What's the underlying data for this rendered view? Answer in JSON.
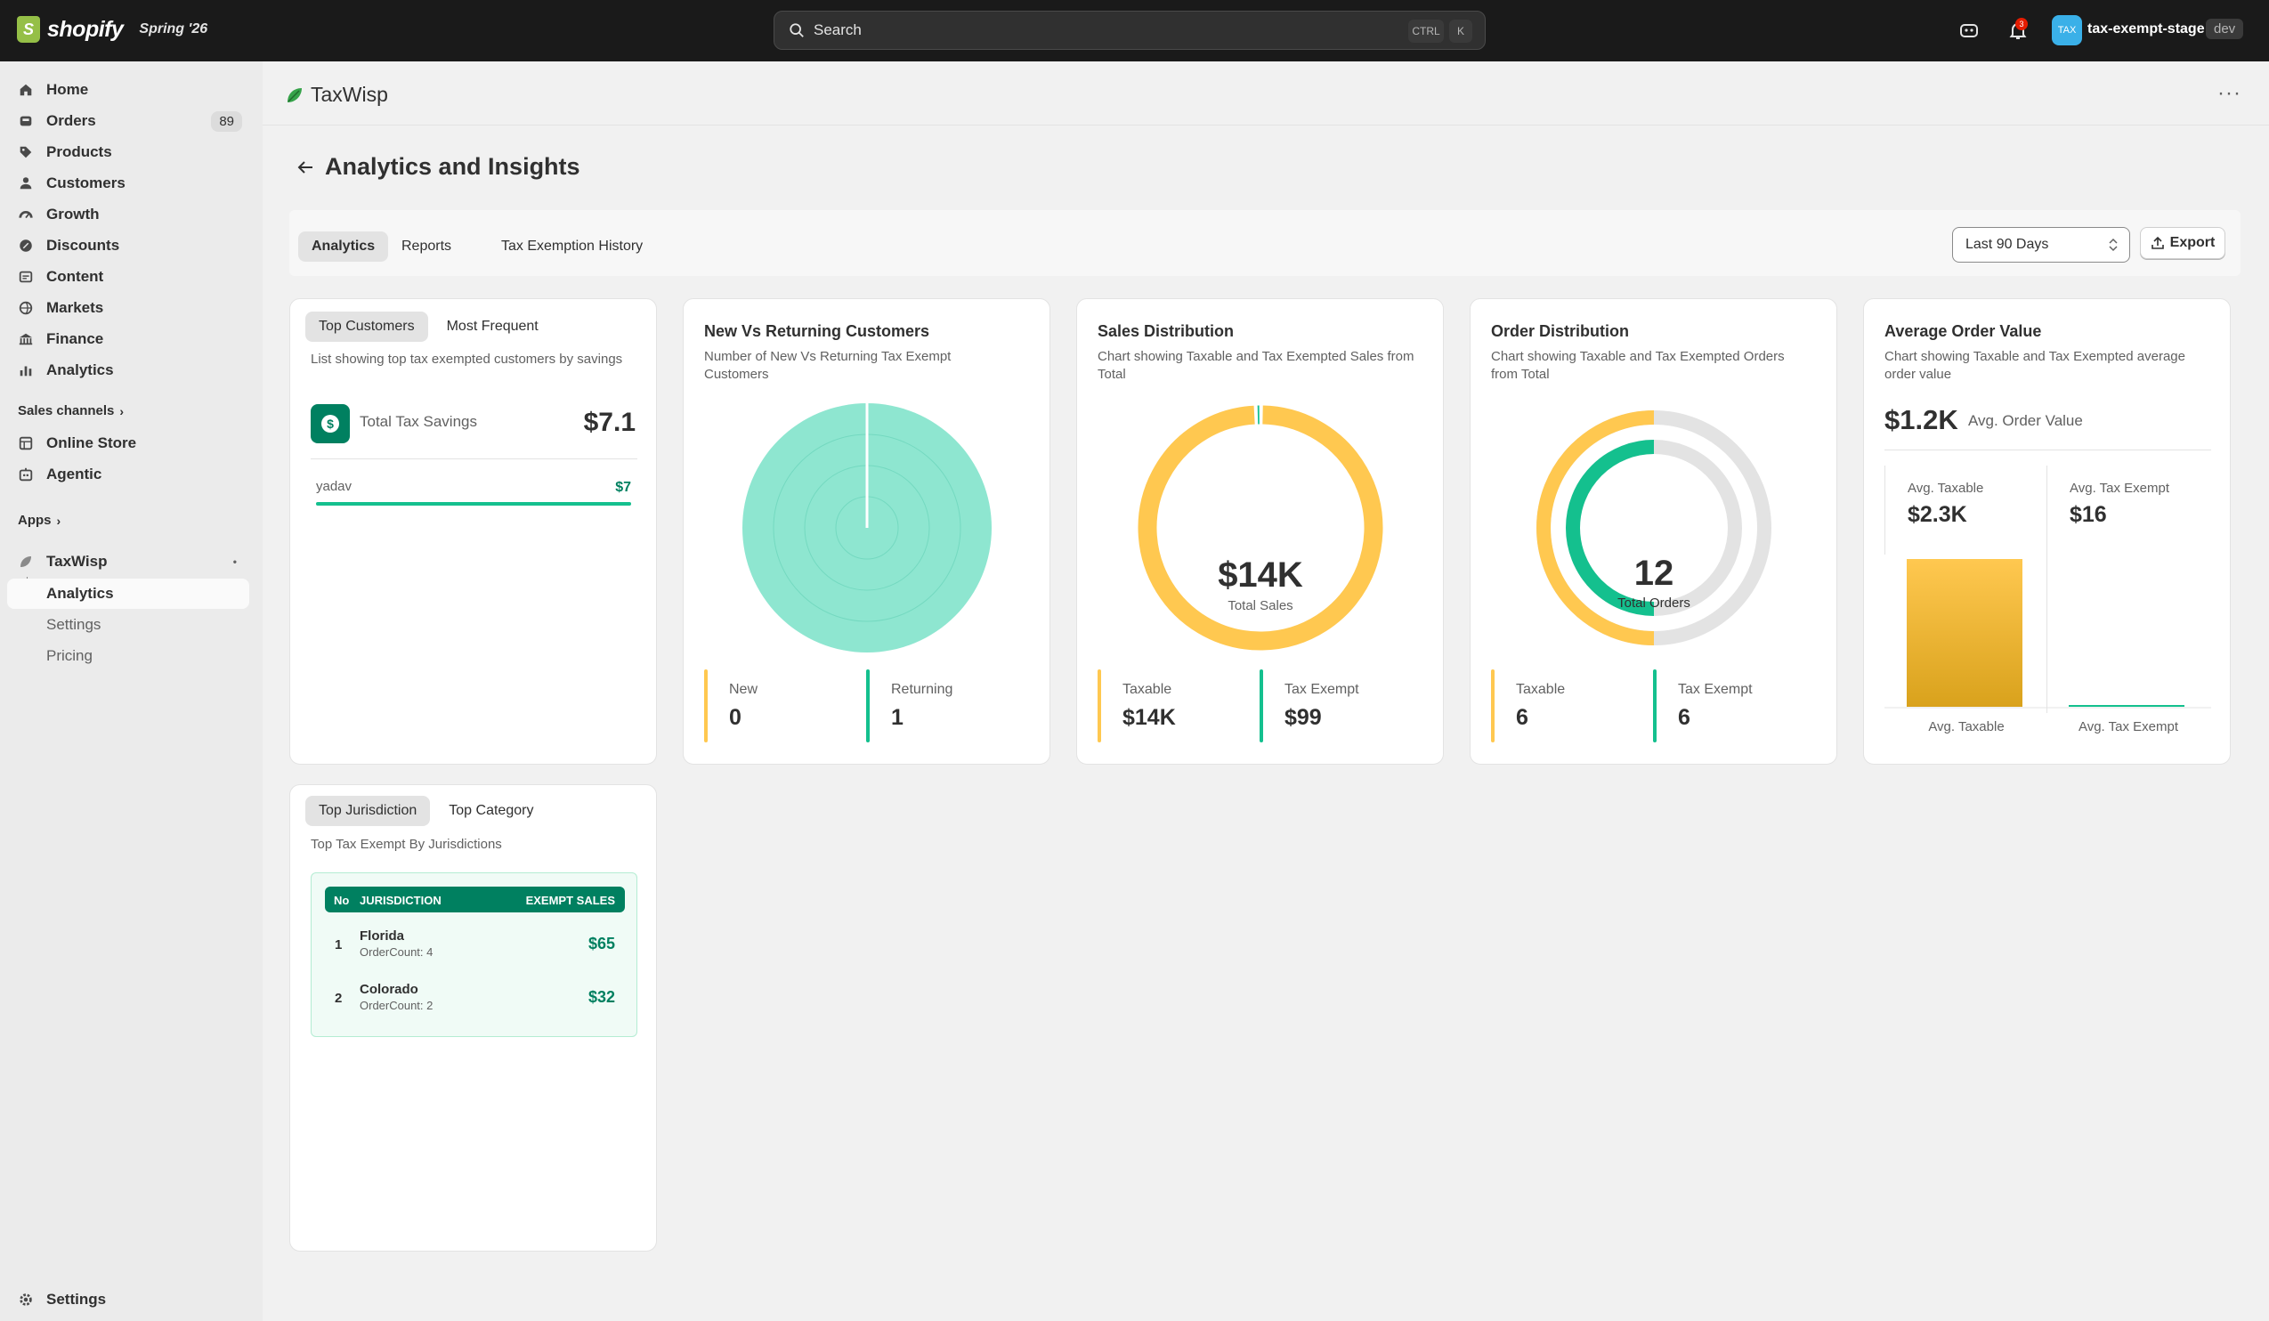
{
  "topbar": {
    "brand": "shopify",
    "edition": "Spring '26",
    "search_placeholder": "Search",
    "shortcut_ctrl": "CTRL",
    "shortcut_key": "K",
    "notification_count": "3",
    "store_avatar": "TAX",
    "store_name": "tax-exempt-stage",
    "env_badge": "dev"
  },
  "sidebar": {
    "items": [
      {
        "label": "Home",
        "icon": "home-icon"
      },
      {
        "label": "Orders",
        "icon": "orders-icon",
        "count": "89"
      },
      {
        "label": "Products",
        "icon": "tag-icon"
      },
      {
        "label": "Customers",
        "icon": "person-icon"
      },
      {
        "label": "Growth",
        "icon": "gauge-icon"
      },
      {
        "label": "Discounts",
        "icon": "discount-icon"
      },
      {
        "label": "Content",
        "icon": "content-icon"
      },
      {
        "label": "Markets",
        "icon": "globe-icon"
      },
      {
        "label": "Finance",
        "icon": "bank-icon"
      },
      {
        "label": "Analytics",
        "icon": "bar-chart-icon"
      }
    ],
    "sales_channels_label": "Sales channels",
    "channels": [
      {
        "label": "Online Store",
        "icon": "store-icon"
      },
      {
        "label": "Agentic",
        "icon": "agent-icon"
      }
    ],
    "apps_label": "Apps",
    "app_name": "TaxWisp",
    "app_pages": [
      {
        "label": "Analytics"
      },
      {
        "label": "Settings"
      },
      {
        "label": "Pricing"
      }
    ],
    "settings_label": "Settings"
  },
  "app": {
    "title": "TaxWisp",
    "page_title": "Analytics and Insights",
    "tabs": [
      "Analytics",
      "Reports",
      "Tax Exemption History"
    ],
    "date_range": "Last 90 Days",
    "export_label": "Export"
  },
  "colors": {
    "taxable": "#ffc850",
    "exempt": "#14c08e",
    "teal_fill": "#8ee6d0",
    "ring_grey": "#e3e3e3",
    "green_brand": "#008060"
  },
  "top_customers": {
    "tabs": [
      "Top Customers",
      "Most Frequent"
    ],
    "desc": "List showing top tax exempted customers by savings",
    "savings_label": "Total Tax Savings",
    "savings_value": "$7.1",
    "customers": [
      {
        "name": "yadav",
        "value": "$7",
        "progress": 1.0
      }
    ]
  },
  "new_returning": {
    "title": "New Vs Returning Customers",
    "desc": "Number of New Vs Returning Tax Exempt Customers",
    "legend": [
      {
        "label": "New",
        "value": "0"
      },
      {
        "label": "Returning",
        "value": "1"
      }
    ]
  },
  "sales_distribution": {
    "title": "Sales Distribution",
    "desc": "Chart showing Taxable and Tax Exempted Sales from Total",
    "center_value": "$14K",
    "center_label": "Total Sales",
    "legend": [
      {
        "label": "Taxable",
        "value": "$14K"
      },
      {
        "label": "Tax Exempt",
        "value": "$99"
      }
    ]
  },
  "order_distribution": {
    "title": "Order Distribution",
    "desc": "Chart showing Taxable and Tax Exempted Orders from Total",
    "center_value": "12",
    "center_label": "Total Orders",
    "legend": [
      {
        "label": "Taxable",
        "value": "6"
      },
      {
        "label": "Tax Exempt",
        "value": "6"
      }
    ]
  },
  "avg_order": {
    "title": "Average Order Value",
    "desc": "Chart showing Taxable and Tax Exempted average order value",
    "value": "$1.2K",
    "value_label": "Avg. Order Value",
    "stats": [
      {
        "label": "Avg. Taxable",
        "value": "$2.3K"
      },
      {
        "label": "Avg. Tax Exempt",
        "value": "$16"
      }
    ],
    "bar_labels": [
      "Avg. Taxable",
      "Avg. Tax Exempt"
    ]
  },
  "jurisdiction": {
    "tabs": [
      "Top Jurisdiction",
      "Top Category"
    ],
    "desc": "Top Tax Exempt By Jurisdictions",
    "headers": [
      "No",
      "JURISDICTION",
      "EXEMPT SALES"
    ],
    "rows": [
      {
        "no": "1",
        "name": "Florida",
        "orders": "OrderCount: 4",
        "sales": "$65"
      },
      {
        "no": "2",
        "name": "Colorado",
        "orders": "OrderCount: 2",
        "sales": "$32"
      }
    ]
  },
  "chart_data": [
    {
      "type": "pie",
      "title": "New Vs Returning Customers",
      "categories": [
        "New",
        "Returning"
      ],
      "values": [
        0,
        1
      ]
    },
    {
      "type": "pie",
      "title": "Sales Distribution",
      "categories": [
        "Taxable",
        "Tax Exempt"
      ],
      "values": [
        14000,
        99
      ]
    },
    {
      "type": "pie",
      "title": "Order Distribution",
      "categories": [
        "Taxable",
        "Tax Exempt"
      ],
      "values": [
        6,
        6
      ],
      "total": 12
    },
    {
      "type": "bar",
      "title": "Average Order Value",
      "categories": [
        "Avg. Taxable",
        "Avg. Tax Exempt"
      ],
      "values": [
        2300,
        16
      ]
    }
  ]
}
